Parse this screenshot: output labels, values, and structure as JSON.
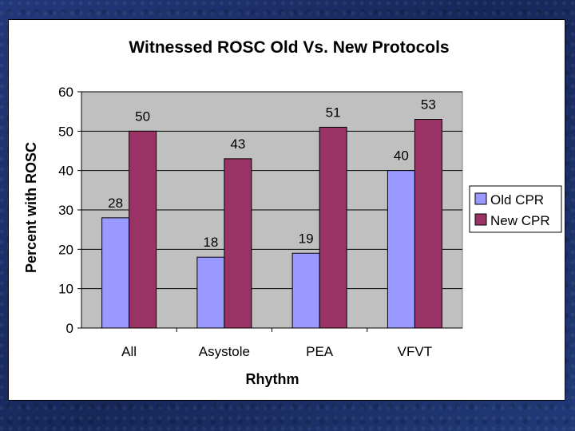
{
  "chart_data": {
    "type": "bar",
    "title": "Witnessed ROSC Old Vs. New Protocols",
    "xlabel": "Rhythm",
    "ylabel": "Percent with ROSC",
    "categories": [
      "All",
      "Asystole",
      "PEA",
      "VFVT"
    ],
    "series": [
      {
        "name": "Old CPR",
        "values": [
          28,
          18,
          19,
          40
        ],
        "color": "#9999ff"
      },
      {
        "name": "New CPR",
        "values": [
          50,
          43,
          51,
          53
        ],
        "color": "#993366"
      }
    ],
    "ylim": [
      0,
      60
    ],
    "yticks": [
      0,
      10,
      20,
      30,
      40,
      50,
      60
    ],
    "grid": true,
    "plot_background": "#c0c0c0",
    "legend_position": "right"
  }
}
